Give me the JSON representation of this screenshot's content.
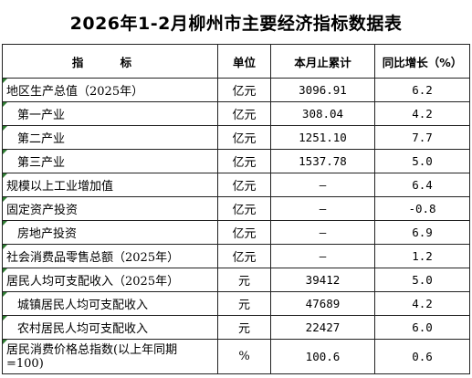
{
  "title": "2026年1-2月柳州市主要经济指标数据表",
  "headers": {
    "indicator": "指  标",
    "unit": "单位",
    "value": "本月止累计",
    "yoy": "同比增长（%）"
  },
  "rows": [
    {
      "name": "地区生产总值（2025年）",
      "unit": "亿元",
      "value": "3096.91",
      "yoy": "6.2",
      "indent": false
    },
    {
      "name": "第一产业",
      "unit": "亿元",
      "value": "308.04",
      "yoy": "4.2",
      "indent": true
    },
    {
      "name": "第二产业",
      "unit": "亿元",
      "value": "1251.10",
      "yoy": "7.7",
      "indent": true
    },
    {
      "name": "第三产业",
      "unit": "亿元",
      "value": "1537.78",
      "yoy": "5.0",
      "indent": true
    },
    {
      "name": "规模以上工业增加值",
      "unit": "亿元",
      "value": "—",
      "yoy": "6.4",
      "indent": false
    },
    {
      "name": "固定资产投资",
      "unit": "亿元",
      "value": "—",
      "yoy": "-0.8",
      "indent": false
    },
    {
      "name": "房地产投资",
      "unit": "亿元",
      "value": "—",
      "yoy": "6.9",
      "indent": true
    },
    {
      "name": "社会消费品零售总额（2025年）",
      "unit": "亿元",
      "value": "—",
      "yoy": "1.2",
      "indent": false
    },
    {
      "name": "居民人均可支配收入（2025年）",
      "unit": "元",
      "value": "39412",
      "yoy": "5.0",
      "indent": false
    },
    {
      "name": "城镇居民人均可支配收入",
      "unit": "元",
      "value": "47689",
      "yoy": "4.2",
      "indent": true
    },
    {
      "name": "农村居民人均可支配收入",
      "unit": "元",
      "value": "22427",
      "yoy": "6.0",
      "indent": true
    },
    {
      "name": "居民消费价格总指数(以上年同期=100)",
      "unit": "%",
      "value": "100.6",
      "yoy": "0.6",
      "indent": false
    }
  ]
}
